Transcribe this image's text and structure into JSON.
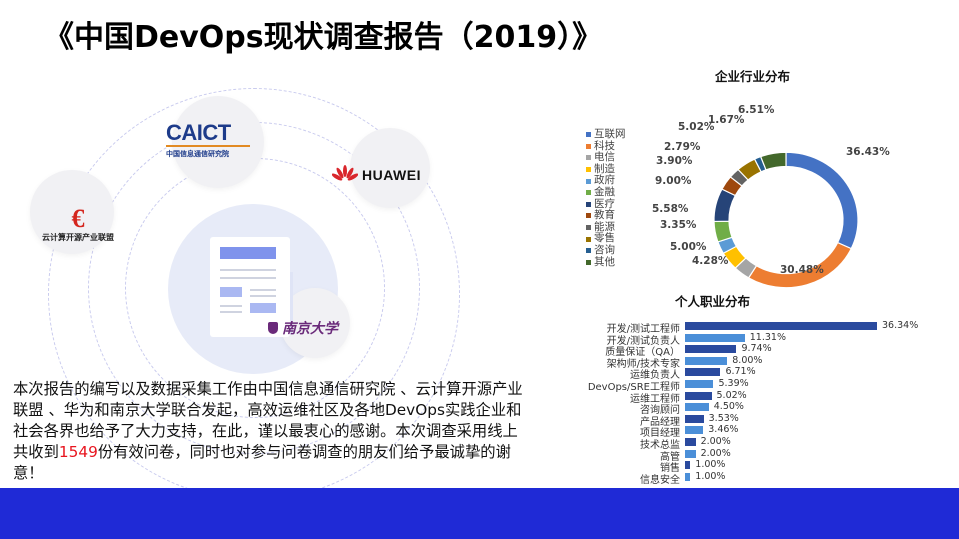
{
  "title": "《中国DevOps现状调查报告（2019）》",
  "illustration": {
    "logos": {
      "caict_main": "CAICT",
      "caict_sub": "中国信息通信研究院",
      "huawei": "HUAWEI",
      "ycit": "云计算开源产业联盟",
      "nju": "南京大学"
    }
  },
  "paragraph": {
    "before": "本次报告的编写以及数据采集工作由中国信息通信研究院 、云计算开源产业联盟 、华为和南京大学联合发起，高效运维社区及各地DevOps实践企业和社会各界也给予了大力支持，在此，谨以最衷心的感谢。本次调查采用线上共收到",
    "highlight": "1549",
    "after": "份有效问卷，同时也对参与问卷调查的朋友们给予最诚挚的谢意！",
    "highlight_color": "#e8141e"
  },
  "colors": {
    "footer_band": "#1f2ad6",
    "bar_dark": "#2a4a9e",
    "bar_light": "#4b8fd8"
  },
  "chart_data": [
    {
      "type": "pie",
      "variant": "donut",
      "title": "企业行业分布",
      "legend_position": "left",
      "categories": [
        "互联网",
        "科技",
        "电信",
        "制造",
        "政府",
        "金融",
        "医疗",
        "教育",
        "能源",
        "零售",
        "咨询",
        "其他"
      ],
      "values": [
        36.43,
        30.48,
        4.28,
        5.0,
        3.35,
        5.58,
        9.0,
        3.9,
        2.79,
        5.02,
        1.67,
        6.51
      ],
      "labels": [
        "36.43%",
        "30.48%",
        "4.28%",
        "5.00%",
        "3.35%",
        "5.58%",
        "9.00%",
        "3.90%",
        "2.79%",
        "5.02%",
        "1.67%",
        "6.51%"
      ],
      "colors": [
        "#4472c4",
        "#ed7d31",
        "#a5a5a5",
        "#ffc000",
        "#5b9bd5",
        "#70ad47",
        "#264478",
        "#9e480e",
        "#636363",
        "#997300",
        "#255e91",
        "#43682b"
      ]
    },
    {
      "type": "bar",
      "orientation": "horizontal",
      "title": "个人职业分布",
      "categories": [
        "开发/测试工程师",
        "开发/测试负责人",
        "质量保证（QA）",
        "架构师/技术专家",
        "运维负责人",
        "DevOps/SRE工程师",
        "运维工程师",
        "咨询顾问",
        "产品经理",
        "项目经理",
        "技术总监",
        "高管",
        "销售",
        "信息安全"
      ],
      "values": [
        36.34,
        11.31,
        9.74,
        8.0,
        6.71,
        5.39,
        5.02,
        4.5,
        3.53,
        3.46,
        2.0,
        2.0,
        1.0,
        1.0
      ],
      "labels": [
        "36.34%",
        "11.31%",
        "9.74%",
        "8.00%",
        "6.71%",
        "5.39%",
        "5.02%",
        "4.50%",
        "3.53%",
        "3.46%",
        "2.00%",
        "2.00%",
        "1.00%",
        "1.00%"
      ],
      "grid": false,
      "axis_visible": false
    }
  ]
}
